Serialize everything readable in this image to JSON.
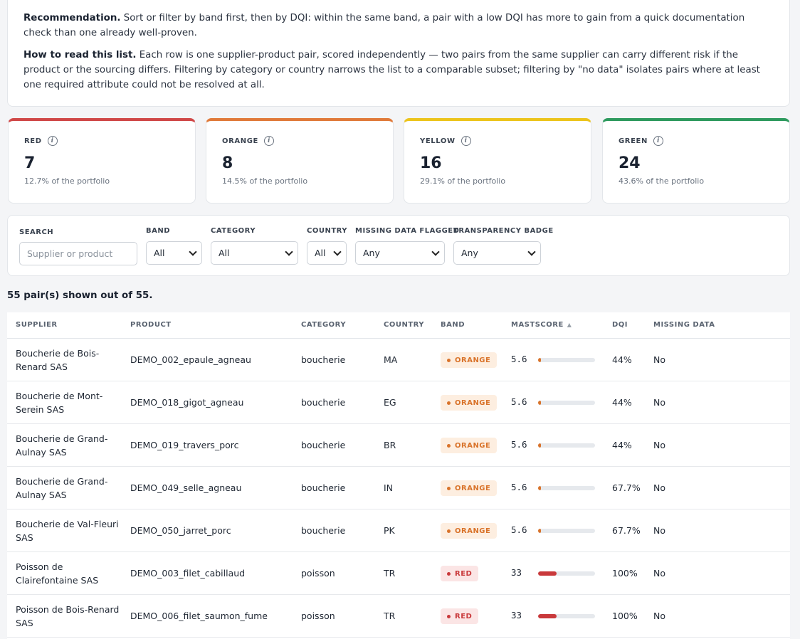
{
  "intro": {
    "rec_label": "Recommendation.",
    "rec_text": " Sort or filter by band first, then by DQI: within the same band, a pair with a low DQI has more to gain from a quick documentation check than one already well-proven.",
    "read_label": "How to read this list.",
    "read_text": " Each row is one supplier-product pair, scored independently — two pairs from the same supplier can carry different risk if the product or the sourcing differs. Filtering by category or country narrows the list to a comparable subset; filtering by \"no data\" isolates pairs where at least one required attribute could not be resolved at all."
  },
  "kpis": [
    {
      "label": "RED",
      "value": "7",
      "sub": "12.7% of the portfolio",
      "color": "#d04848"
    },
    {
      "label": "ORANGE",
      "value": "8",
      "sub": "14.5% of the portfolio",
      "color": "#e07a3a"
    },
    {
      "label": "YELLOW",
      "value": "16",
      "sub": "29.1% of the portfolio",
      "color": "#ecc41c"
    },
    {
      "label": "GREEN",
      "value": "24",
      "sub": "43.6% of the portfolio",
      "color": "#2e9a5e"
    }
  ],
  "filters": {
    "search_label": "SEARCH",
    "search_placeholder": "Supplier or product",
    "band_label": "BAND",
    "band_value": "All",
    "category_label": "CATEGORY",
    "category_value": "All",
    "country_label": "COUNTRY",
    "country_value": "All",
    "missing_label": "MISSING DATA FLAGGED",
    "missing_value": "Any",
    "badge_label": "TRANSPARENCY BADGE",
    "badge_value": "Any"
  },
  "count_text": "55 pair(s) shown out of 55.",
  "table": {
    "headers": {
      "supplier": "SUPPLIER",
      "product": "PRODUCT",
      "category": "CATEGORY",
      "country": "COUNTRY",
      "band": "BAND",
      "mastscore": "MASTSCORE",
      "dqi": "DQI",
      "missing": "MISSING DATA"
    },
    "sort_indicator": "▲",
    "rows": [
      {
        "supplier": "Boucherie de Bois-Renard SAS",
        "product": "DEMO_002_epaule_agneau",
        "category": "boucherie",
        "country": "MA",
        "band": "ORANGE",
        "score": "5.6",
        "score_fraction": 0.056,
        "dqi": "44%",
        "missing": "No"
      },
      {
        "supplier": "Boucherie de Mont-Serein SAS",
        "product": "DEMO_018_gigot_agneau",
        "category": "boucherie",
        "country": "EG",
        "band": "ORANGE",
        "score": "5.6",
        "score_fraction": 0.056,
        "dqi": "44%",
        "missing": "No"
      },
      {
        "supplier": "Boucherie de Grand-Aulnay SAS",
        "product": "DEMO_019_travers_porc",
        "category": "boucherie",
        "country": "BR",
        "band": "ORANGE",
        "score": "5.6",
        "score_fraction": 0.056,
        "dqi": "44%",
        "missing": "No"
      },
      {
        "supplier": "Boucherie de Grand-Aulnay SAS",
        "product": "DEMO_049_selle_agneau",
        "category": "boucherie",
        "country": "IN",
        "band": "ORANGE",
        "score": "5.6",
        "score_fraction": 0.056,
        "dqi": "67.7%",
        "missing": "No"
      },
      {
        "supplier": "Boucherie de Val-Fleuri SAS",
        "product": "DEMO_050_jarret_porc",
        "category": "boucherie",
        "country": "PK",
        "band": "ORANGE",
        "score": "5.6",
        "score_fraction": 0.056,
        "dqi": "67.7%",
        "missing": "No"
      },
      {
        "supplier": "Poisson de Clairefontaine SAS",
        "product": "DEMO_003_filet_cabillaud",
        "category": "poisson",
        "country": "TR",
        "band": "RED",
        "score": "33",
        "score_fraction": 0.33,
        "dqi": "100%",
        "missing": "No"
      },
      {
        "supplier": "Poisson de Bois-Renard SAS",
        "product": "DEMO_006_filet_saumon_fume",
        "category": "poisson",
        "country": "TR",
        "band": "RED",
        "score": "33",
        "score_fraction": 0.33,
        "dqi": "100%",
        "missing": "No"
      }
    ]
  }
}
